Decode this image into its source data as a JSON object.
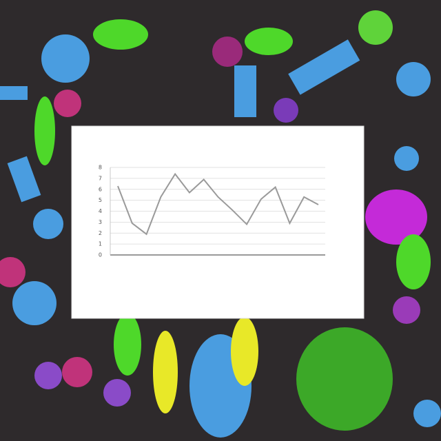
{
  "chart_data": {
    "type": "line",
    "categories": [
      null,
      null,
      null,
      null,
      null,
      null,
      null,
      null,
      null,
      null,
      null,
      null,
      null,
      null,
      null
    ],
    "series": [
      {
        "color": "#9a9a9a",
        "values": [
          6.3,
          2.9,
          1.9,
          5.3,
          7.4,
          5.7,
          6.9,
          5.3,
          4.1,
          2.8,
          5.1,
          6.2,
          2.9,
          5.3,
          4.6
        ]
      }
    ],
    "ylim": [
      0,
      8
    ],
    "yticks": [
      0,
      1,
      2,
      3,
      4,
      5,
      6,
      7,
      8
    ],
    "grid": true
  }
}
